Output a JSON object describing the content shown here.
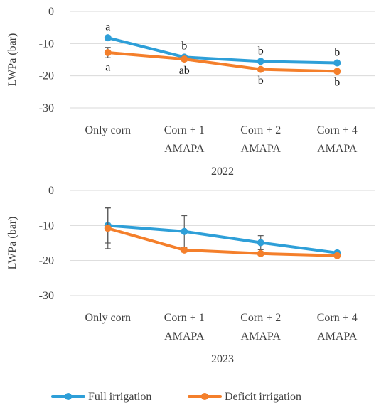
{
  "colors": {
    "full_irrigation": "#2e9fd8",
    "deficit_irrigation": "#f47f2b"
  },
  "legend": [
    {
      "key": "full_irrigation",
      "label": "Full irrigation"
    },
    {
      "key": "deficit_irrigation",
      "label": "Deficit irrigation"
    }
  ],
  "chart_data": [
    {
      "type": "line",
      "xlabel": "2022",
      "ylabel": "LWPa (bar)",
      "ylim": [
        -30,
        0
      ],
      "yticks": [
        0,
        -10,
        -20,
        -30
      ],
      "categories": [
        [
          "Only corn"
        ],
        [
          "Corn + 1",
          "AMAPA"
        ],
        [
          "Corn + 2",
          "AMAPA"
        ],
        [
          "Corn + 4",
          "AMAPA"
        ]
      ],
      "grid": true,
      "series": [
        {
          "name": "Full irrigation",
          "key": "full_irrigation",
          "values": [
            -8.2,
            -14.2,
            -15.5,
            -16.0
          ],
          "err": [
            0.6,
            0.6,
            0.4,
            0.4
          ],
          "letters": [
            "a",
            "b",
            "b",
            "b"
          ],
          "letter_pos": "above"
        },
        {
          "name": "Deficit irrigation",
          "key": "deficit_irrigation",
          "values": [
            -12.8,
            -14.8,
            -18.0,
            -18.6
          ],
          "err": [
            1.6,
            0.6,
            0.5,
            0.5
          ],
          "letters": [
            "a",
            "ab",
            "b",
            "b"
          ],
          "letter_pos": "below"
        }
      ]
    },
    {
      "type": "line",
      "xlabel": "2023",
      "ylabel": "LWPa (bar)",
      "ylim": [
        -30,
        0
      ],
      "yticks": [
        0,
        -10,
        -20,
        -30
      ],
      "categories": [
        [
          "Only corn"
        ],
        [
          "Corn + 1",
          "AMAPA"
        ],
        [
          "Corn + 2",
          "AMAPA"
        ],
        [
          "Corn + 4",
          "AMAPA"
        ]
      ],
      "grid": true,
      "series": [
        {
          "name": "Full irrigation",
          "key": "full_irrigation",
          "values": [
            -10.0,
            -11.7,
            -14.9,
            -17.8
          ],
          "err": [
            5.0,
            4.5,
            2.0,
            0.4
          ],
          "letters": [],
          "letter_pos": "above"
        },
        {
          "name": "Deficit irrigation",
          "key": "deficit_irrigation",
          "values": [
            -10.8,
            -17.0,
            -18.0,
            -18.6
          ],
          "err": [
            5.8,
            0.6,
            0.5,
            0.4
          ],
          "letters": [],
          "letter_pos": "below"
        }
      ]
    }
  ]
}
